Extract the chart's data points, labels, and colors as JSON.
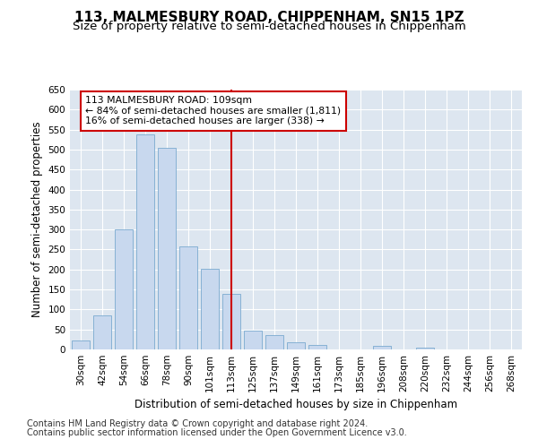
{
  "title": "113, MALMESBURY ROAD, CHIPPENHAM, SN15 1PZ",
  "subtitle": "Size of property relative to semi-detached houses in Chippenham",
  "xlabel": "Distribution of semi-detached houses by size in Chippenham",
  "ylabel": "Number of semi-detached properties",
  "categories": [
    "30sqm",
    "42sqm",
    "54sqm",
    "66sqm",
    "78sqm",
    "90sqm",
    "101sqm",
    "113sqm",
    "125sqm",
    "137sqm",
    "149sqm",
    "161sqm",
    "173sqm",
    "185sqm",
    "196sqm",
    "208sqm",
    "220sqm",
    "232sqm",
    "244sqm",
    "256sqm",
    "268sqm"
  ],
  "values": [
    22,
    85,
    300,
    538,
    505,
    258,
    202,
    138,
    46,
    35,
    17,
    12,
    0,
    0,
    10,
    0,
    5,
    0,
    0,
    0,
    0
  ],
  "bar_color": "#c8d8ee",
  "bar_edge_color": "#7aaad0",
  "highlight_index": 7,
  "highlight_color": "#cc0000",
  "annotation_line1": "113 MALMESBURY ROAD: 109sqm",
  "annotation_line2": "← 84% of semi-detached houses are smaller (1,811)",
  "annotation_line3": "16% of semi-detached houses are larger (338) →",
  "annotation_box_color": "#ffffff",
  "annotation_box_edge_color": "#cc0000",
  "ylim": [
    0,
    650
  ],
  "yticks": [
    0,
    50,
    100,
    150,
    200,
    250,
    300,
    350,
    400,
    450,
    500,
    550,
    600,
    650
  ],
  "footnote1": "Contains HM Land Registry data © Crown copyright and database right 2024.",
  "footnote2": "Contains public sector information licensed under the Open Government Licence v3.0.",
  "bg_color": "#ffffff",
  "plot_bg_color": "#dde6f0",
  "grid_color": "#ffffff",
  "title_fontsize": 11,
  "subtitle_fontsize": 9.5,
  "axis_label_fontsize": 8.5,
  "tick_fontsize": 7.5,
  "footnote_fontsize": 7
}
